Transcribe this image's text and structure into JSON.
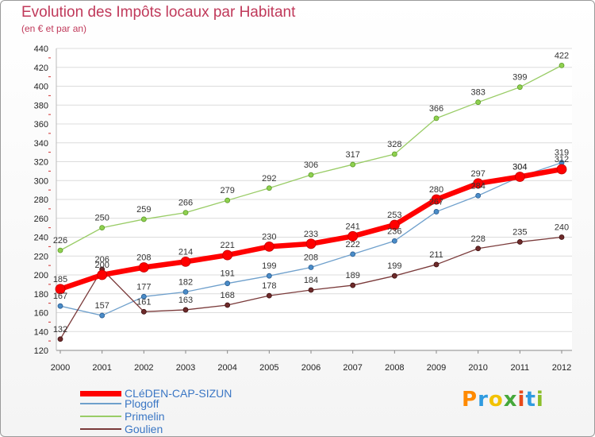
{
  "header": {
    "title": "Evolution des Impôts locaux par Habitant",
    "subtitle": "(en € et par an)"
  },
  "chart_data": {
    "type": "line",
    "title": "Evolution des Impôts locaux par Habitant",
    "ylabel": "(en € et par an)",
    "xlabel": "",
    "x": [
      "2000",
      "2001",
      "2002",
      "2003",
      "2004",
      "2005",
      "2006",
      "2007",
      "2008",
      "2009",
      "2010",
      "2011",
      "2012"
    ],
    "ylim": [
      120,
      440
    ],
    "yticks": [
      "120",
      "140",
      "160",
      "180",
      "200",
      "220",
      "240",
      "260",
      "280",
      "300",
      "320",
      "340",
      "360",
      "380",
      "400",
      "420",
      "440"
    ],
    "grid": "horizontal",
    "legend_position": "bottom-left",
    "series": [
      {
        "name": "CLéDEN-CAP-SIZUN",
        "color": "#ff0000",
        "values": [
          185,
          200,
          208,
          214,
          221,
          230,
          233,
          241,
          253,
          280,
          297,
          304,
          312
        ]
      },
      {
        "name": "Plogoff",
        "color": "#6fa0cc",
        "values": [
          167,
          157,
          177,
          182,
          191,
          199,
          208,
          222,
          236,
          267,
          284,
          304,
          319
        ]
      },
      {
        "name": "Primelin",
        "color": "#99cc66",
        "values": [
          226,
          250,
          259,
          266,
          279,
          292,
          306,
          317,
          328,
          366,
          383,
          399,
          422
        ]
      },
      {
        "name": "Goulien",
        "color": "#7a3a3a",
        "values": [
          132,
          206,
          161,
          163,
          168,
          178,
          184,
          189,
          199,
          211,
          228,
          235,
          240
        ]
      }
    ]
  },
  "branding": {
    "logo_letters": [
      "P",
      "r",
      "o",
      "x",
      "i",
      "t",
      "i"
    ],
    "logo_colors": [
      "#ff8a00",
      "#2f9be0",
      "#f2c200",
      "#46a83b",
      "#e84a1a",
      "#2f9be0",
      "#8bbf2a"
    ]
  }
}
